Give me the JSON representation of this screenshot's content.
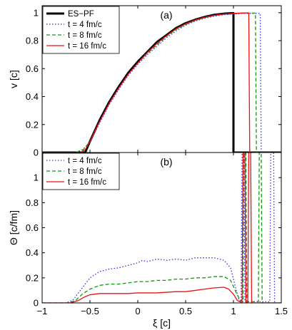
{
  "chart_data": [
    {
      "type": "line",
      "panel_label": "(a)",
      "ylabel": "v [c]",
      "xlim": [
        -1,
        1.5
      ],
      "ylim": [
        0,
        1.05
      ],
      "xticks": [
        -1,
        -0.5,
        0,
        0.5,
        1,
        1.5
      ],
      "yticks": [
        0,
        0.2,
        0.4,
        0.6,
        0.8,
        1
      ],
      "ytick_labels": [
        "0",
        "0.2",
        "0.4",
        "0.6",
        "0.8",
        "1"
      ],
      "legend_position": "top-left",
      "series": [
        {
          "name": "ES−PF",
          "color": "#000000",
          "dash": "solid",
          "width": 3,
          "points": [
            [
              -1,
              0
            ],
            [
              -0.55,
              0
            ],
            [
              -0.5,
              0.08
            ],
            [
              -0.4,
              0.23
            ],
            [
              -0.3,
              0.36
            ],
            [
              -0.2,
              0.47
            ],
            [
              -0.1,
              0.57
            ],
            [
              0,
              0.65
            ],
            [
              0.1,
              0.72
            ],
            [
              0.2,
              0.79
            ],
            [
              0.3,
              0.84
            ],
            [
              0.4,
              0.89
            ],
            [
              0.5,
              0.925
            ],
            [
              0.6,
              0.95
            ],
            [
              0.7,
              0.97
            ],
            [
              0.8,
              0.985
            ],
            [
              0.9,
              0.993
            ],
            [
              1.0,
              0.997
            ],
            [
              1.0,
              0
            ],
            [
              1.5,
              0
            ]
          ]
        },
        {
          "name": "t = 4 fm/c",
          "color": "#3333ee",
          "dash": "dotted",
          "width": 1.3,
          "points": [
            [
              -1,
              0
            ],
            [
              -0.65,
              0
            ],
            [
              -0.58,
              0.02
            ],
            [
              -0.5,
              0.07
            ],
            [
              -0.4,
              0.21
            ],
            [
              -0.3,
              0.34
            ],
            [
              -0.2,
              0.45
            ],
            [
              -0.1,
              0.55
            ],
            [
              0,
              0.63
            ],
            [
              0.1,
              0.7
            ],
            [
              0.2,
              0.76
            ],
            [
              0.3,
              0.82
            ],
            [
              0.4,
              0.87
            ],
            [
              0.5,
              0.91
            ],
            [
              0.6,
              0.94
            ],
            [
              0.7,
              0.96
            ],
            [
              0.8,
              0.975
            ],
            [
              0.9,
              0.985
            ],
            [
              1.0,
              0.99
            ],
            [
              1.1,
              0.995
            ],
            [
              1.2,
              0.995
            ],
            [
              1.28,
              0.995
            ],
            [
              1.29,
              0
            ],
            [
              1.5,
              0
            ]
          ]
        },
        {
          "name": "t = 8 fm/c",
          "color": "#119911",
          "dash": "dashed",
          "width": 1.3,
          "points": [
            [
              -1,
              0
            ],
            [
              -0.65,
              0
            ],
            [
              -0.57,
              0.02
            ],
            [
              -0.5,
              0.08
            ],
            [
              -0.4,
              0.22
            ],
            [
              -0.3,
              0.35
            ],
            [
              -0.2,
              0.46
            ],
            [
              -0.1,
              0.56
            ],
            [
              0,
              0.64
            ],
            [
              0.1,
              0.71
            ],
            [
              0.2,
              0.77
            ],
            [
              0.3,
              0.83
            ],
            [
              0.4,
              0.88
            ],
            [
              0.5,
              0.915
            ],
            [
              0.6,
              0.945
            ],
            [
              0.7,
              0.965
            ],
            [
              0.8,
              0.98
            ],
            [
              0.9,
              0.988
            ],
            [
              1.0,
              0.993
            ],
            [
              1.1,
              0.996
            ],
            [
              1.2,
              0.997
            ],
            [
              1.23,
              0.997
            ],
            [
              1.24,
              0
            ],
            [
              1.5,
              0
            ]
          ]
        },
        {
          "name": "t = 16 fm/c",
          "color": "#ee1111",
          "dash": "solid",
          "width": 1.3,
          "points": [
            [
              -1,
              0
            ],
            [
              -0.6,
              0
            ],
            [
              -0.55,
              0.02
            ],
            [
              -0.5,
              0.08
            ],
            [
              -0.4,
              0.22
            ],
            [
              -0.3,
              0.35
            ],
            [
              -0.2,
              0.46
            ],
            [
              -0.1,
              0.56
            ],
            [
              0,
              0.64
            ],
            [
              0.1,
              0.715
            ],
            [
              0.2,
              0.78
            ],
            [
              0.3,
              0.835
            ],
            [
              0.4,
              0.885
            ],
            [
              0.5,
              0.92
            ],
            [
              0.6,
              0.948
            ],
            [
              0.7,
              0.968
            ],
            [
              0.8,
              0.982
            ],
            [
              0.9,
              0.99
            ],
            [
              1.0,
              0.995
            ],
            [
              1.1,
              0.998
            ],
            [
              1.16,
              0.998
            ],
            [
              1.17,
              0
            ],
            [
              1.5,
              0
            ]
          ]
        }
      ]
    },
    {
      "type": "line",
      "panel_label": "(b)",
      "xlabel": "ξ [c]",
      "ylabel": "Θ [c/fm]",
      "xlim": [
        -1,
        1.5
      ],
      "ylim": [
        0,
        1.2
      ],
      "xticks": [
        -1,
        -0.5,
        0,
        0.5,
        1,
        1.5
      ],
      "xtick_labels": [
        "−1",
        "−0.5",
        "0",
        "0.5",
        "1",
        "1.5"
      ],
      "yticks": [
        0,
        0.2,
        0.4,
        0.6,
        0.8,
        1
      ],
      "ytick_labels": [
        "0",
        "0.2",
        "0.4",
        "0.6",
        "0.8",
        "1"
      ],
      "legend_position": "top-left",
      "series": [
        {
          "name": "t = 4 fm/c",
          "color": "#3333ee",
          "dash": "dotted",
          "width": 1.3,
          "points": [
            [
              -1,
              0
            ],
            [
              -0.75,
              0
            ],
            [
              -0.68,
              0.02
            ],
            [
              -0.6,
              0.1
            ],
            [
              -0.5,
              0.2
            ],
            [
              -0.4,
              0.25
            ],
            [
              -0.3,
              0.27
            ],
            [
              -0.2,
              0.28
            ],
            [
              -0.1,
              0.3
            ],
            [
              0,
              0.32
            ],
            [
              0.05,
              0.34
            ],
            [
              0.1,
              0.33
            ],
            [
              0.2,
              0.35
            ],
            [
              0.3,
              0.34
            ],
            [
              0.4,
              0.35
            ],
            [
              0.5,
              0.34
            ],
            [
              0.6,
              0.36
            ],
            [
              0.7,
              0.36
            ],
            [
              0.8,
              0.36
            ],
            [
              0.9,
              0.34
            ],
            [
              0.97,
              0.28
            ],
            [
              1.03,
              0.1
            ],
            [
              1.06,
              0.02
            ],
            [
              1.08,
              0.01
            ],
            [
              1.09,
              1.2
            ],
            [
              1.11,
              1.2
            ],
            [
              1.12,
              0.01
            ],
            [
              1.38,
              0.01
            ],
            [
              1.39,
              1.2
            ],
            [
              1.42,
              1.2
            ],
            [
              1.43,
              0
            ],
            [
              1.5,
              0
            ]
          ]
        },
        {
          "name": "t = 8 fm/c",
          "color": "#119911",
          "dash": "dashed",
          "width": 1.3,
          "points": [
            [
              -1,
              0
            ],
            [
              -0.72,
              0
            ],
            [
              -0.65,
              0.02
            ],
            [
              -0.58,
              0.07
            ],
            [
              -0.5,
              0.11
            ],
            [
              -0.4,
              0.14
            ],
            [
              -0.3,
              0.15
            ],
            [
              -0.2,
              0.15
            ],
            [
              -0.1,
              0.16
            ],
            [
              0,
              0.17
            ],
            [
              0.1,
              0.17
            ],
            [
              0.2,
              0.18
            ],
            [
              0.3,
              0.18
            ],
            [
              0.4,
              0.19
            ],
            [
              0.5,
              0.19
            ],
            [
              0.6,
              0.2
            ],
            [
              0.7,
              0.2
            ],
            [
              0.8,
              0.21
            ],
            [
              0.9,
              0.21
            ],
            [
              0.97,
              0.18
            ],
            [
              1.03,
              0.08
            ],
            [
              1.07,
              0.02
            ],
            [
              1.1,
              0.01
            ],
            [
              1.11,
              1.2
            ],
            [
              1.13,
              1.2
            ],
            [
              1.14,
              0.01
            ],
            [
              1.26,
              0.01
            ],
            [
              1.27,
              1.2
            ],
            [
              1.29,
              1.2
            ],
            [
              1.3,
              0
            ],
            [
              1.5,
              0
            ]
          ]
        },
        {
          "name": "t = 16 fm/c",
          "color": "#ee1111",
          "dash": "solid",
          "width": 1.3,
          "points": [
            [
              -1,
              0
            ],
            [
              -0.7,
              0
            ],
            [
              -0.62,
              0.02
            ],
            [
              -0.55,
              0.05
            ],
            [
              -0.5,
              0.065
            ],
            [
              -0.4,
              0.075
            ],
            [
              -0.3,
              0.075
            ],
            [
              -0.2,
              0.075
            ],
            [
              -0.1,
              0.075
            ],
            [
              0,
              0.08
            ],
            [
              0.1,
              0.08
            ],
            [
              0.2,
              0.08
            ],
            [
              0.3,
              0.085
            ],
            [
              0.4,
              0.09
            ],
            [
              0.5,
              0.09
            ],
            [
              0.6,
              0.1
            ],
            [
              0.7,
              0.11
            ],
            [
              0.8,
              0.12
            ],
            [
              0.9,
              0.125
            ],
            [
              0.95,
              0.11
            ],
            [
              1.0,
              0.07
            ],
            [
              1.04,
              0.02
            ],
            [
              1.08,
              0.005
            ],
            [
              1.09,
              0.005
            ],
            [
              1.1,
              1.2
            ],
            [
              1.12,
              1.2
            ],
            [
              1.13,
              0.005
            ],
            [
              1.15,
              0.005
            ],
            [
              1.16,
              1.2
            ],
            [
              1.18,
              1.2
            ],
            [
              1.19,
              0
            ],
            [
              1.5,
              0
            ]
          ]
        }
      ]
    }
  ]
}
